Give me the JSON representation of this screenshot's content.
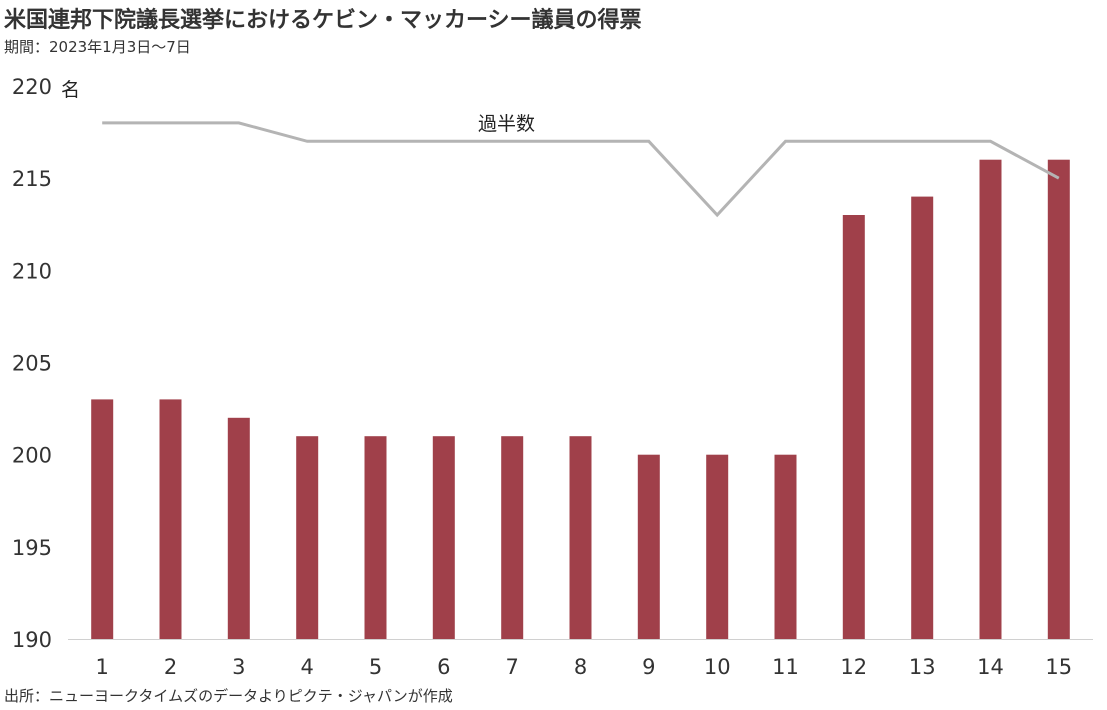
{
  "header": {
    "title": "米国連邦下院議長選挙におけるケビン・マッカーシー議員の得票",
    "subtitle": "期間：2023年1月3日～7日"
  },
  "footer": {
    "source": "出所：ニューヨークタイムズのデータよりピクテ・ジャパンが作成"
  },
  "chart_data": {
    "type": "bar",
    "x": [
      1,
      2,
      3,
      4,
      5,
      6,
      7,
      8,
      9,
      10,
      11,
      12,
      13,
      14,
      15
    ],
    "series": [
      {
        "type": "bar",
        "values": [
          203,
          203,
          202,
          201,
          201,
          201,
          201,
          201,
          200,
          200,
          200,
          213,
          214,
          216,
          216
        ],
        "color": "#a0404a"
      },
      {
        "name": "過半数",
        "type": "line",
        "values": [
          218,
          218,
          218,
          217,
          217,
          217,
          217,
          217,
          217,
          213,
          217,
          217,
          217,
          217,
          215
        ],
        "color": "#b4b4b4"
      }
    ],
    "ylim": [
      190,
      220
    ],
    "yticks": [
      190,
      195,
      200,
      205,
      210,
      215,
      220
    ],
    "yunit": "名",
    "grid": false,
    "legend": "inline label above line"
  }
}
